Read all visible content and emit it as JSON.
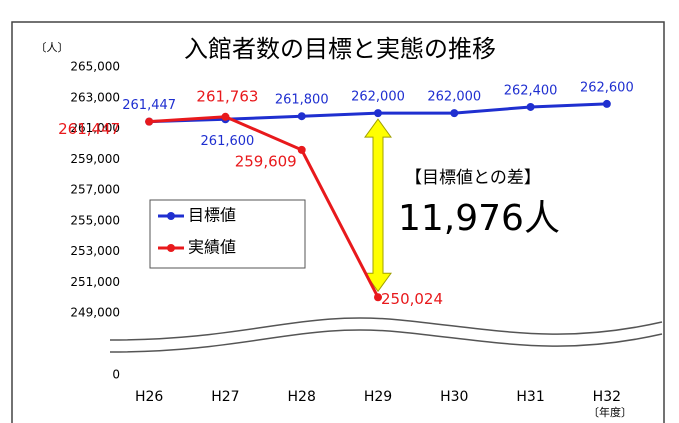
{
  "chart_data": {
    "type": "line",
    "title": "入館者数の目標と実態の推移",
    "y_unit_label": "〔人〕",
    "x_unit_label": "〔年度〕",
    "categories": [
      "H26",
      "H27",
      "H28",
      "H29",
      "H30",
      "H31",
      "H32"
    ],
    "series": [
      {
        "name": "目標値",
        "color": "#1f2fd0",
        "values": [
          261447,
          261600,
          261800,
          262000,
          262000,
          262400,
          262600
        ],
        "value_labels": [
          "261,447",
          "261,600",
          "261,800",
          "262,000",
          "262,000",
          "262,400",
          "262,600"
        ]
      },
      {
        "name": "実績値",
        "color": "#e8191c",
        "values": [
          261447,
          261763,
          259609,
          250024,
          null,
          null,
          null
        ],
        "value_labels": [
          "261,447",
          "261,763",
          "259,609",
          "250,024",
          null,
          null,
          null
        ]
      }
    ],
    "ylim": [
      249000,
      265000
    ],
    "yticks": [
      {
        "value": 249000,
        "label": "249,000"
      },
      {
        "value": 251000,
        "label": "251,000"
      },
      {
        "value": 253000,
        "label": "253,000"
      },
      {
        "value": 255000,
        "label": "255,000"
      },
      {
        "value": 257000,
        "label": "257,000"
      },
      {
        "value": 259000,
        "label": "259,000"
      },
      {
        "value": 261000,
        "label": "261,000"
      },
      {
        "value": 263000,
        "label": "263,000"
      },
      {
        "value": 265000,
        "label": "265,000"
      },
      0
    ],
    "broken_axis": true,
    "legend": "left",
    "annotations": [
      "【目標値との差】",
      "11,976人"
    ]
  }
}
